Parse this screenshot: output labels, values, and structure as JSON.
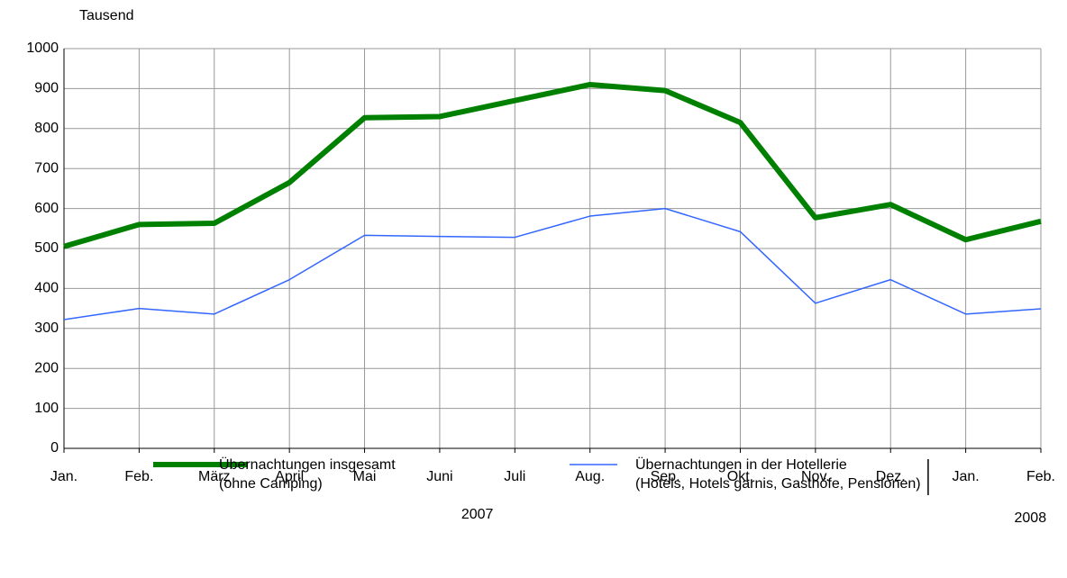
{
  "chart_data": {
    "type": "line",
    "y_label": "Tausend",
    "categories": [
      "Jan.",
      "Feb.",
      "März",
      "April",
      "Mai",
      "Juni",
      "Juli",
      "Aug.",
      "Sep.",
      "Okt.",
      "Nov.",
      "Dez.",
      "Jan.",
      "Feb."
    ],
    "year_labels": [
      "2007",
      "2008"
    ],
    "series": [
      {
        "name": "Übernachtungen insgesamt\n(ohne Camping)",
        "color": "#008000",
        "width": 6,
        "values": [
          505,
          560,
          563,
          665,
          827,
          830,
          870,
          910,
          895,
          815,
          577,
          610,
          522,
          568
        ]
      },
      {
        "name": "Übernachtungen in der Hotellerie\n(Hotels, Hotels garnis, Gasthöfe, Pensionen)",
        "color": "#3366ff",
        "width": 1.5,
        "values": [
          322,
          350,
          336,
          422,
          533,
          530,
          528,
          581,
          600,
          542,
          363,
          422,
          336,
          349
        ]
      }
    ],
    "ylim": [
      0,
      1000
    ],
    "yticks": [
      0,
      100,
      200,
      300,
      400,
      500,
      600,
      700,
      800,
      900,
      1000
    ],
    "grid": true
  }
}
